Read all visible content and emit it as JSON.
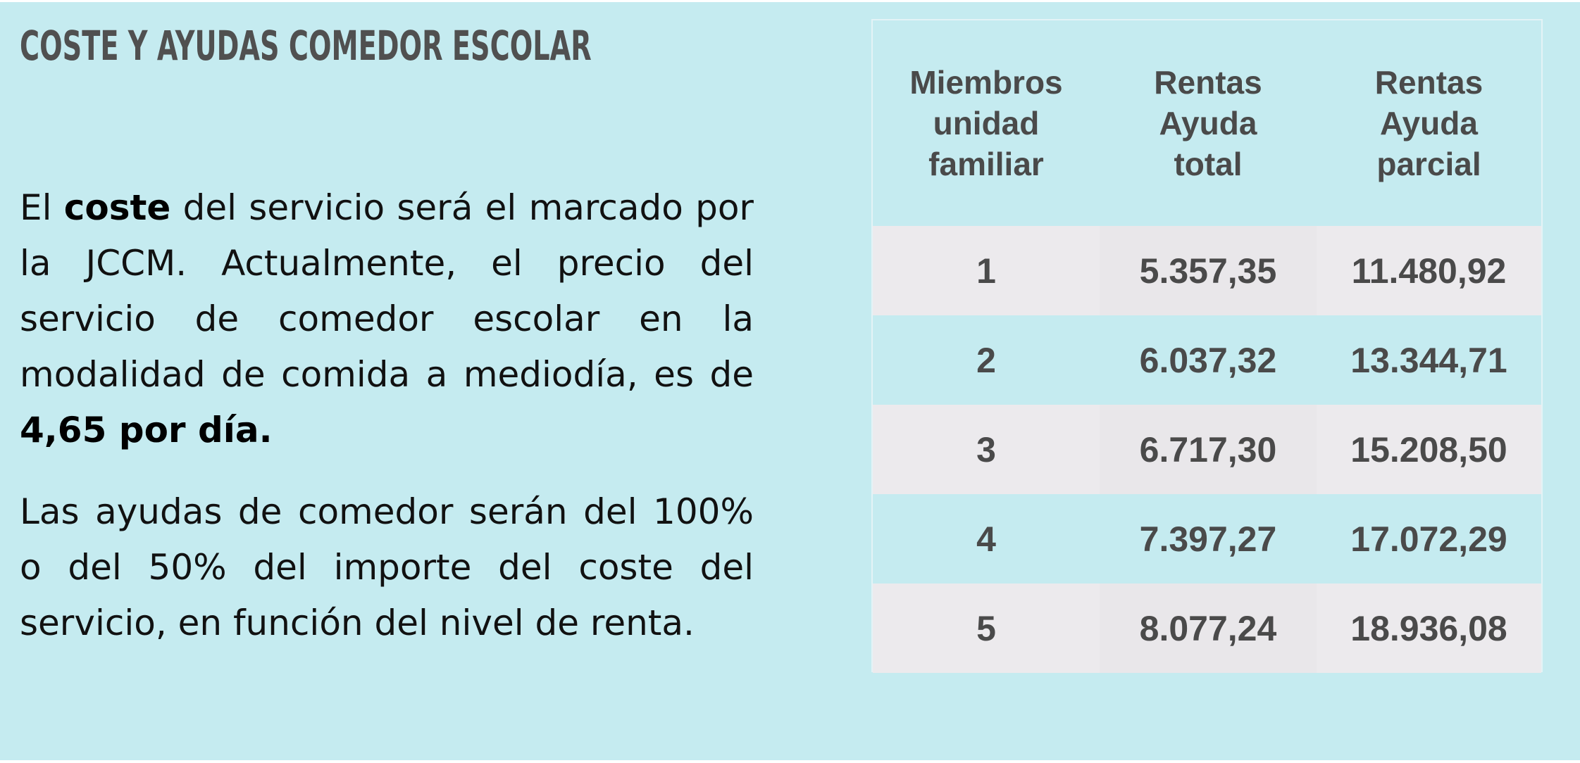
{
  "title": "COSTE Y AYUDAS COMEDOR ESCOLAR",
  "paragraph1": {
    "t1": "El ",
    "b1": "coste",
    "t2": " del servicio será el marcado por la JCCM. Actualmente, el precio del servicio de comedor escolar en la modalidad de comida a mediodía, es de ",
    "b2": "4,65 por día."
  },
  "paragraph2": "Las ayudas de comedor serán del 100% o del 50% del importe del coste del servicio, en función del nivel de renta.",
  "table": {
    "headers": [
      [
        "Miembros",
        "unidad",
        "familiar"
      ],
      [
        "Rentas",
        "Ayuda",
        "total"
      ],
      [
        "Rentas",
        "Ayuda",
        "parcial"
      ]
    ],
    "rows": [
      [
        "1",
        "5.357,35",
        "11.480,92"
      ],
      [
        "2",
        "6.037,32",
        "13.344,71"
      ],
      [
        "3",
        "6.717,30",
        "15.208,50"
      ],
      [
        "4",
        "7.397,27",
        "17.072,29"
      ],
      [
        "5",
        "8.077,24",
        "18.936,08"
      ]
    ]
  },
  "colors": {
    "background": "#c5ebf0",
    "row_alt": "#eceaed",
    "title_text": "#505050",
    "table_text": "#4a4a4a"
  }
}
